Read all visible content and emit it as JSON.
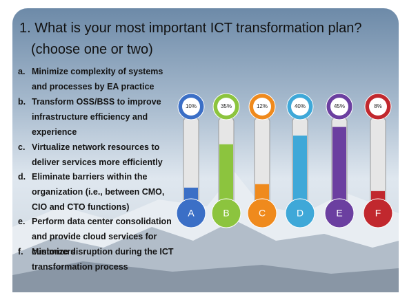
{
  "chart_data": {
    "type": "thermometer",
    "title": "1. What is your most important ICT transformation plan?",
    "subtitle": "(choose one or two)",
    "annotations": [
      {
        "label": "a.",
        "text": "Minimize complexity of systems and processes by EA practice"
      },
      {
        "label": "b.",
        "text": "Transform OSS/BSS to improve infrastructure efficiency and experience"
      },
      {
        "label": "c.",
        "text": "Virtualize network resources to deliver services more efficiently"
      },
      {
        "label": "d.",
        "text": "Eliminate barriers within the organization (i.e., between CMO, CIO and CTO functions)"
      },
      {
        "label": "e.",
        "text": "Perform data center consolidation and provide cloud services for customers"
      },
      {
        "label": "f.",
        "text": "Minimize disruption during the ICT transformation process"
      }
    ],
    "categories": [
      "A",
      "B",
      "C",
      "D",
      "E",
      "F"
    ],
    "values": [
      10,
      35,
      12,
      40,
      45,
      8
    ],
    "value_labels": [
      "10%",
      "35%",
      "12%",
      "40%",
      "45%",
      "8%"
    ],
    "colors": [
      "#3b6fc6",
      "#8cc43e",
      "#ef8a1d",
      "#3fa8d8",
      "#6b3fa0",
      "#c1282e"
    ]
  }
}
